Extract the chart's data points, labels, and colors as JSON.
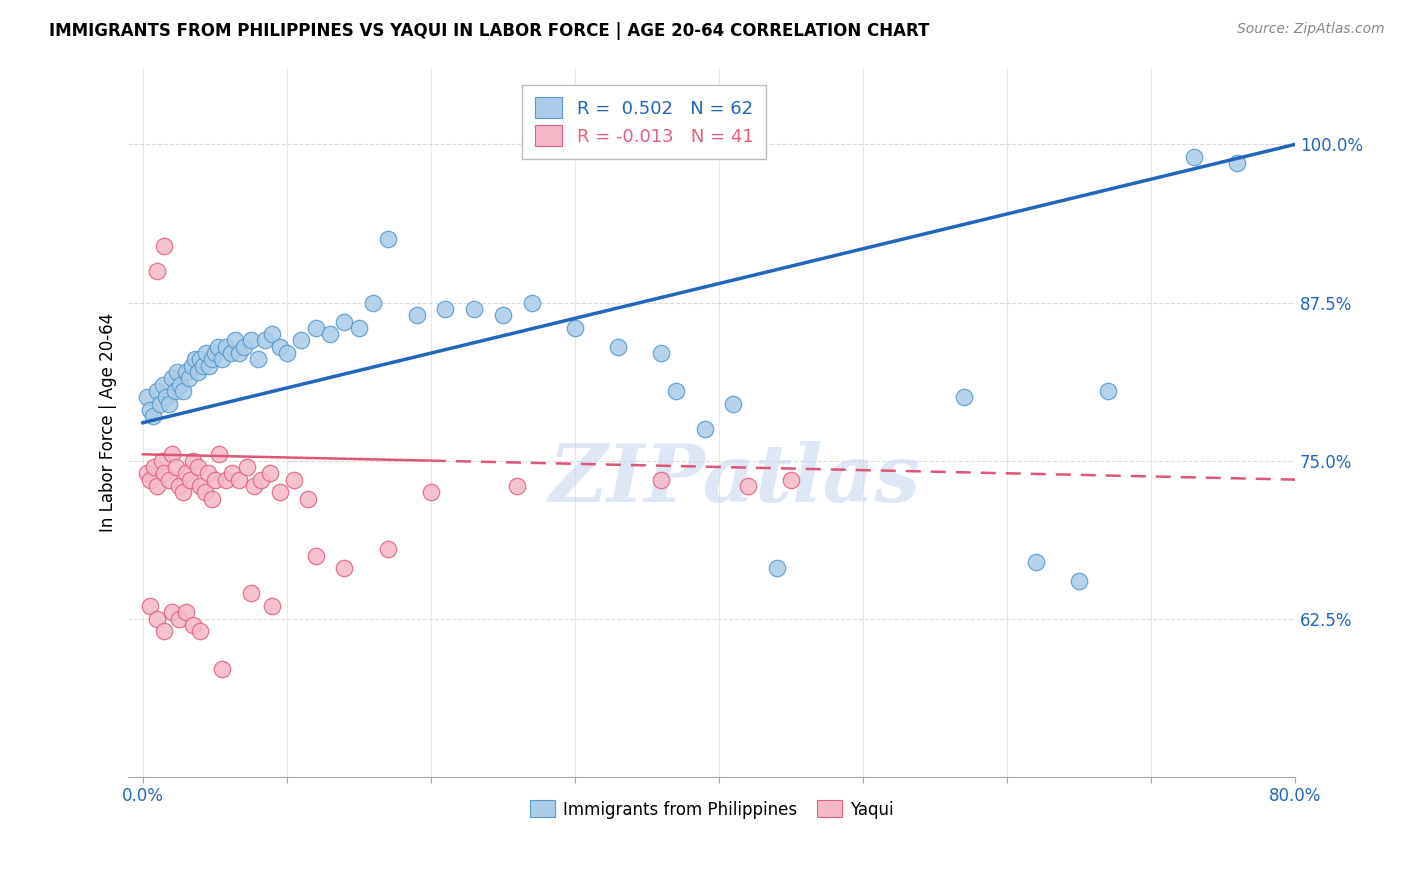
{
  "title": "IMMIGRANTS FROM PHILIPPINES VS YAQUI IN LABOR FORCE | AGE 20-64 CORRELATION CHART",
  "source": "Source: ZipAtlas.com",
  "xlabel_vals": [
    0.0,
    10.0,
    20.0,
    30.0,
    40.0,
    50.0,
    60.0,
    70.0,
    80.0
  ],
  "xlabel_show": [
    "0.0%",
    "",
    "",
    "",
    "",
    "",
    "",
    "",
    "80.0%"
  ],
  "ylabel_vals": [
    62.5,
    75.0,
    87.5,
    100.0
  ],
  "ylabel_label": "In Labor Force | Age 20-64",
  "xlim": [
    -1.0,
    80.0
  ],
  "ylim": [
    50.0,
    106.0
  ],
  "blue_R": "0.502",
  "blue_N": "62",
  "pink_R": "-0.013",
  "pink_N": "41",
  "blue_color": "#aacce8",
  "pink_color": "#f5b8c8",
  "blue_edge_color": "#5599cc",
  "pink_edge_color": "#e06080",
  "blue_line_color": "#2266bb",
  "pink_line_color": "#dd5577",
  "watermark": "ZIPatlas",
  "watermark_color": "#c8d8ef",
  "blue_scatter_x": [
    0.3,
    0.5,
    0.7,
    1.0,
    1.2,
    1.4,
    1.6,
    1.8,
    2.0,
    2.2,
    2.4,
    2.6,
    2.8,
    3.0,
    3.2,
    3.4,
    3.6,
    3.8,
    4.0,
    4.2,
    4.4,
    4.6,
    4.8,
    5.0,
    5.2,
    5.5,
    5.8,
    6.1,
    6.4,
    6.7,
    7.0,
    7.5,
    8.0,
    8.5,
    9.0,
    9.5,
    10.0,
    11.0,
    12.0,
    13.0,
    14.0,
    15.0,
    16.0,
    17.0,
    19.0,
    21.0,
    23.0,
    25.0,
    27.0,
    30.0,
    33.0,
    36.0,
    37.0,
    39.0,
    41.0,
    44.0,
    57.0,
    62.0,
    65.0,
    67.0,
    73.0,
    76.0
  ],
  "blue_scatter_y": [
    80.0,
    79.0,
    78.5,
    80.5,
    79.5,
    81.0,
    80.0,
    79.5,
    81.5,
    80.5,
    82.0,
    81.0,
    80.5,
    82.0,
    81.5,
    82.5,
    83.0,
    82.0,
    83.0,
    82.5,
    83.5,
    82.5,
    83.0,
    83.5,
    84.0,
    83.0,
    84.0,
    83.5,
    84.5,
    83.5,
    84.0,
    84.5,
    83.0,
    84.5,
    85.0,
    84.0,
    83.5,
    84.5,
    85.5,
    85.0,
    86.0,
    85.5,
    87.5,
    92.5,
    86.5,
    87.0,
    87.0,
    86.5,
    87.5,
    85.5,
    84.0,
    83.5,
    80.5,
    77.5,
    79.5,
    66.5,
    80.0,
    67.0,
    65.5,
    80.5,
    99.0,
    98.5
  ],
  "pink_scatter_x": [
    0.3,
    0.5,
    0.8,
    1.0,
    1.3,
    1.5,
    1.8,
    2.0,
    2.3,
    2.5,
    2.8,
    3.0,
    3.3,
    3.5,
    3.8,
    4.0,
    4.3,
    4.5,
    4.8,
    5.0,
    5.3,
    5.8,
    6.2,
    6.7,
    7.2,
    7.7,
    8.2,
    8.8,
    9.5,
    10.5,
    11.5,
    12.0,
    14.0,
    17.0,
    20.0,
    26.0,
    36.0,
    42.0,
    45.0,
    1.0,
    1.5
  ],
  "pink_scatter_y": [
    74.0,
    73.5,
    74.5,
    73.0,
    75.0,
    74.0,
    73.5,
    75.5,
    74.5,
    73.0,
    72.5,
    74.0,
    73.5,
    75.0,
    74.5,
    73.0,
    72.5,
    74.0,
    72.0,
    73.5,
    75.5,
    73.5,
    74.0,
    73.5,
    74.5,
    73.0,
    73.5,
    74.0,
    72.5,
    73.5,
    72.0,
    67.5,
    66.5,
    68.0,
    72.5,
    73.0,
    73.5,
    73.0,
    73.5,
    90.0,
    92.0
  ],
  "pink_extra_x": [
    0.5,
    1.0,
    1.5,
    2.0,
    2.5,
    3.0,
    3.5,
    4.0,
    5.5,
    7.5,
    9.0
  ],
  "pink_extra_y": [
    63.5,
    62.5,
    61.5,
    63.0,
    62.5,
    63.0,
    62.0,
    61.5,
    58.5,
    64.5,
    63.5
  ]
}
